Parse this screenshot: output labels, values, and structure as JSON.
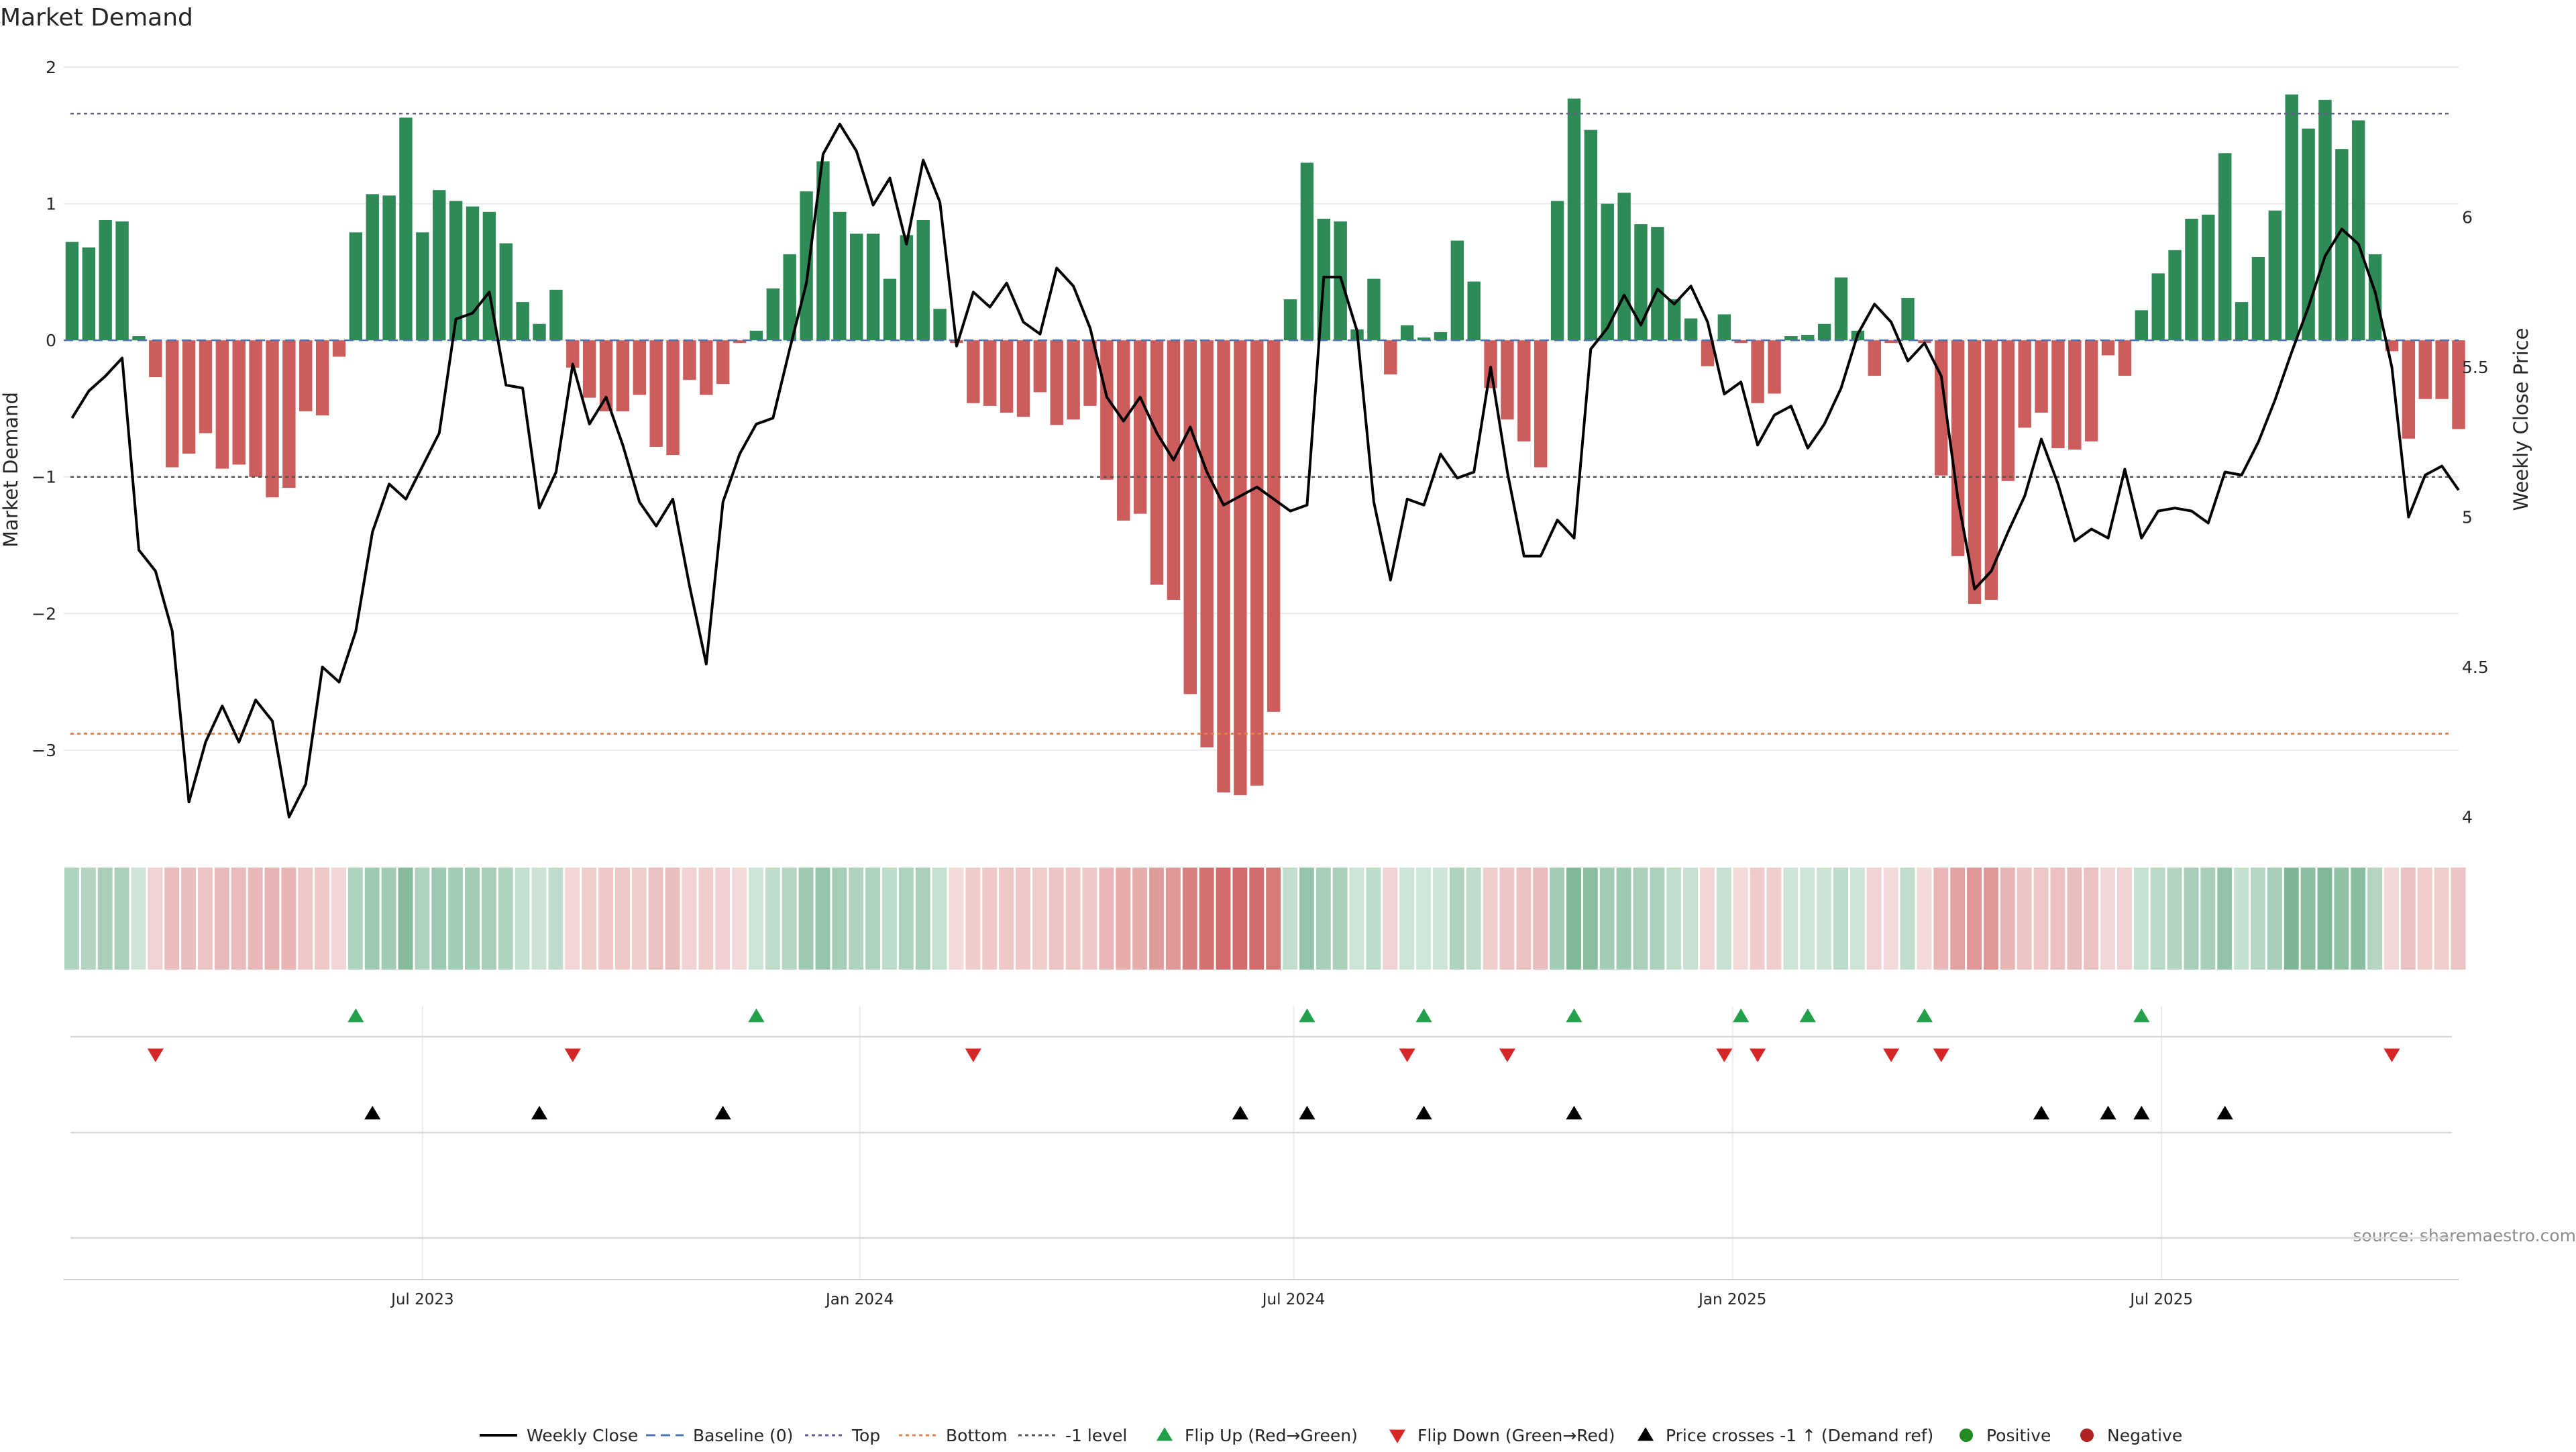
{
  "chart_data": {
    "type": "bar+line",
    "title": "Market Demand",
    "ylabel_left": "Market Demand",
    "ylabel_right": "Weekly Close Price",
    "source": "source: sharemaestro.com",
    "left_axis": {
      "ylim": [
        -3.6,
        2.0
      ],
      "ticks": [
        2,
        1,
        0,
        -1,
        -2,
        -3
      ],
      "tick_labels": [
        "2",
        "1",
        "0",
        "−1",
        "−2",
        "−3"
      ]
    },
    "right_axis": {
      "ylim": [
        3.95,
        6.5
      ],
      "ticks": [
        6,
        5.5,
        5,
        4.5,
        4
      ],
      "tick_labels": [
        "6",
        "5.5",
        "5",
        "4.5",
        "4"
      ]
    },
    "x_axis": {
      "range": [
        0,
        143.5
      ],
      "ticks": [
        21.5,
        47.7,
        73.7,
        100,
        125.7
      ],
      "tick_labels": [
        "Jul 2023",
        "Jan 2024",
        "Jul 2024",
        "Jan 2025",
        "Jul 2025"
      ]
    },
    "reference_lines": {
      "top": 1.66,
      "bottom": -2.88,
      "minus_one": -1.0,
      "baseline": 0
    },
    "demand": [
      0.72,
      0.68,
      0.88,
      0.87,
      0.03,
      -0.27,
      -0.93,
      -0.83,
      -0.68,
      -0.94,
      -0.91,
      -1.0,
      -1.15,
      -1.08,
      -0.52,
      -0.55,
      -0.12,
      0.79,
      1.07,
      1.06,
      1.63,
      0.79,
      1.1,
      1.02,
      0.98,
      0.94,
      0.71,
      0.28,
      0.12,
      0.37,
      -0.2,
      -0.42,
      -0.52,
      -0.52,
      -0.4,
      -0.78,
      -0.84,
      -0.29,
      -0.4,
      -0.32,
      -0.02,
      0.07,
      0.38,
      0.63,
      1.09,
      1.31,
      0.94,
      0.78,
      0.78,
      0.45,
      0.77,
      0.88,
      0.23,
      -0.02,
      -0.46,
      -0.48,
      -0.53,
      -0.56,
      -0.38,
      -0.62,
      -0.58,
      -0.48,
      -1.02,
      -1.32,
      -1.27,
      -1.79,
      -1.9,
      -2.59,
      -2.98,
      -3.31,
      -3.33,
      -3.26,
      -2.72,
      0.3,
      1.3,
      0.89,
      0.87,
      0.08,
      0.45,
      -0.25,
      0.11,
      0.02,
      0.06,
      0.73,
      0.43,
      -0.35,
      -0.58,
      -0.74,
      -0.93,
      1.02,
      1.77,
      1.54,
      1.0,
      1.08,
      0.85,
      0.83,
      0.3,
      0.16,
      -0.19,
      0.19,
      -0.02,
      -0.46,
      -0.39,
      0.03,
      0.04,
      0.12,
      0.46,
      0.07,
      -0.26,
      -0.02,
      0.31,
      -0.02,
      -0.99,
      -1.58,
      -1.93,
      -1.9,
      -1.03,
      -0.64,
      -0.53,
      -0.79,
      -0.8,
      -0.74,
      -0.11,
      -0.26,
      0.22,
      0.49,
      0.66,
      0.89,
      0.92,
      1.37,
      0.28,
      0.61,
      0.95,
      1.8,
      1.55,
      1.76,
      1.4,
      1.61,
      0.63,
      -0.08,
      -0.72,
      -0.43,
      -0.43,
      -0.65
    ],
    "weekly_close": [
      5.33,
      5.42,
      5.47,
      5.53,
      4.89,
      4.82,
      4.62,
      4.05,
      4.25,
      4.37,
      4.25,
      4.39,
      4.32,
      4.0,
      4.11,
      4.5,
      4.45,
      4.62,
      4.95,
      5.11,
      5.06,
      5.17,
      5.28,
      5.66,
      5.68,
      5.75,
      5.44,
      5.43,
      5.03,
      5.15,
      5.51,
      5.31,
      5.4,
      5.24,
      5.05,
      4.97,
      5.06,
      4.77,
      4.51,
      5.05,
      5.21,
      5.31,
      5.33,
      5.56,
      5.78,
      6.21,
      6.31,
      6.22,
      6.04,
      6.13,
      5.91,
      6.19,
      6.05,
      5.57,
      5.75,
      5.7,
      5.78,
      5.65,
      5.61,
      5.83,
      5.77,
      5.63,
      5.4,
      5.32,
      5.4,
      5.28,
      5.19,
      5.3,
      5.15,
      5.04,
      5.07,
      5.1,
      5.06,
      5.02,
      5.04,
      5.8,
      5.8,
      5.62,
      5.05,
      4.79,
      5.06,
      5.04,
      5.21,
      5.13,
      5.15,
      5.5,
      5.15,
      4.87,
      4.87,
      4.99,
      4.93,
      5.56,
      5.63,
      5.74,
      5.64,
      5.76,
      5.71,
      5.77,
      5.65,
      5.41,
      5.45,
      5.24,
      5.34,
      5.37,
      5.23,
      5.31,
      5.43,
      5.61,
      5.71,
      5.65,
      5.52,
      5.58,
      5.47,
      5.06,
      4.76,
      4.82,
      4.95,
      5.07,
      5.26,
      5.11,
      4.92,
      4.96,
      4.93,
      5.16,
      4.93,
      5.02,
      5.03,
      5.02,
      4.98,
      5.15,
      5.14,
      5.25,
      5.39,
      5.55,
      5.7,
      5.87,
      5.96,
      5.91,
      5.75,
      5.5,
      5.0,
      5.14,
      5.17,
      5.09
    ],
    "flip_up_idx": [
      17,
      41,
      74,
      81,
      90,
      100,
      104,
      111,
      124
    ],
    "flip_down_idx": [
      5,
      30,
      54,
      80,
      86,
      99,
      101,
      109,
      112,
      139
    ],
    "price_cross_idx": [
      18,
      28,
      39,
      70,
      74,
      81,
      90,
      118,
      122,
      124,
      129
    ],
    "legend": [
      {
        "label": "Weekly Close",
        "kind": "line",
        "color": "#000000"
      },
      {
        "label": "Baseline (0)",
        "kind": "dash",
        "color": "#4c72b0"
      },
      {
        "label": "Top",
        "kind": "dot",
        "color": "#6a5a8c"
      },
      {
        "label": "Bottom",
        "kind": "dot",
        "color": "#dd8452"
      },
      {
        "label": "-1 level",
        "kind": "dot",
        "color": "#555555"
      },
      {
        "label": "Flip Up (Red→Green)",
        "kind": "tri-up",
        "color": "#22a04b"
      },
      {
        "label": "Flip Down (Green→Red)",
        "kind": "tri-down",
        "color": "#d62728"
      },
      {
        "label": "Price crosses -1 ↑ (Demand ref)",
        "kind": "tri-up",
        "color": "#000000"
      },
      {
        "label": "Positive",
        "kind": "circle",
        "color": "#228b22"
      },
      {
        "label": "Negative",
        "kind": "circle",
        "color": "#b22222"
      }
    ],
    "colors": {
      "positive": "#2e8b57",
      "negative": "#cd5c5c",
      "line": "#000000",
      "grid": "#ebebeb"
    }
  }
}
